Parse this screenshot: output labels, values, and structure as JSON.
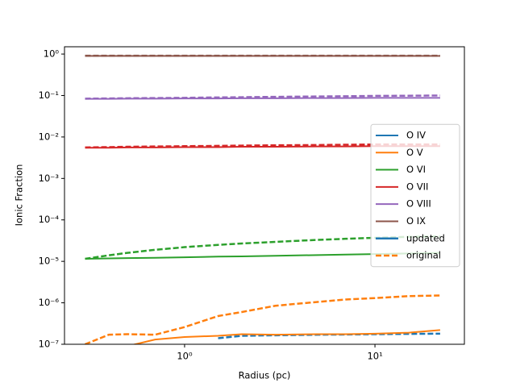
{
  "chart_data": {
    "type": "line",
    "x_label": "Radius (pc)",
    "y_label": "Ionic Fraction",
    "x_log": true,
    "y_log": true,
    "xlim": [
      0.234,
      29.5
    ],
    "ylim": [
      1e-07,
      1.5
    ],
    "xticks": [
      {
        "value": 1,
        "label": "10⁰"
      },
      {
        "value": 10,
        "label": "10¹"
      }
    ],
    "yticks": [
      {
        "value": 1e-07,
        "label": "10⁻⁷"
      },
      {
        "value": 1e-06,
        "label": "10⁻⁶"
      },
      {
        "value": 1e-05,
        "label": "10⁻⁵"
      },
      {
        "value": 0.0001,
        "label": "10⁻⁴"
      },
      {
        "value": 0.001,
        "label": "10⁻³"
      },
      {
        "value": 0.01,
        "label": "10⁻²"
      },
      {
        "value": 0.1,
        "label": "10⁻¹"
      },
      {
        "value": 1,
        "label": "10⁰"
      }
    ],
    "legend_loc": "right",
    "line_styles": [
      {
        "label": "updated",
        "dash": "solid",
        "color": "#1f77b4"
      },
      {
        "label": "original",
        "dash": "dashed",
        "color": "#ff7f0e"
      }
    ],
    "x": [
      0.3,
      0.4,
      0.5,
      0.7,
      1,
      1.5,
      2,
      3,
      5,
      7,
      10,
      15,
      22
    ],
    "series": [
      {
        "name": "O IV",
        "color": "#1f77b4",
        "values": [
          null,
          null,
          null,
          null,
          null,
          null,
          null,
          null,
          null,
          null,
          null,
          null,
          null
        ],
        "original_values": [
          null,
          null,
          null,
          null,
          null,
          1.4e-07,
          1.6e-07,
          1.65e-07,
          1.7e-07,
          1.72e-07,
          1.75e-07,
          1.78e-07,
          1.8e-07
        ]
      },
      {
        "name": "O V",
        "color": "#ff7f0e",
        "values": [
          null,
          null,
          9e-08,
          1.3e-07,
          1.5e-07,
          1.6e-07,
          1.75e-07,
          1.7e-07,
          1.75e-07,
          1.75e-07,
          1.8e-07,
          1.9e-07,
          2.2e-07
        ],
        "original_values": [
          1e-07,
          1.7e-07,
          1.75e-07,
          1.7e-07,
          2.6e-07,
          4.8e-07,
          6e-07,
          8.5e-07,
          1.05e-06,
          1.2e-06,
          1.3e-06,
          1.45e-06,
          1.5e-06
        ]
      },
      {
        "name": "O VI",
        "color": "#2ca02c",
        "values": [
          1.15e-05,
          1.18e-05,
          1.2e-05,
          1.22e-05,
          1.25e-05,
          1.3e-05,
          1.32e-05,
          1.36e-05,
          1.42e-05,
          1.46e-05,
          1.5e-05,
          1.55e-05,
          1.6e-05
        ],
        "original_values": [
          1.15e-05,
          1.4e-05,
          1.6e-05,
          1.9e-05,
          2.2e-05,
          2.5e-05,
          2.7e-05,
          2.95e-05,
          3.3e-05,
          3.5e-05,
          3.7e-05,
          3.9e-05,
          4e-05
        ]
      },
      {
        "name": "O VII",
        "color": "#d62728",
        "values": [
          0.0055,
          0.0055,
          0.0056,
          0.0056,
          0.0057,
          0.0057,
          0.0058,
          0.0058,
          0.0059,
          0.0059,
          0.006,
          0.006,
          0.006
        ],
        "original_values": [
          0.0056,
          0.0057,
          0.0058,
          0.0059,
          0.006,
          0.0061,
          0.0062,
          0.0063,
          0.0064,
          0.0065,
          0.0066,
          0.0066,
          0.0066
        ]
      },
      {
        "name": "O VIII",
        "color": "#9467bd",
        "values": [
          0.083,
          0.083,
          0.084,
          0.084,
          0.085,
          0.085,
          0.086,
          0.086,
          0.087,
          0.087,
          0.088,
          0.088,
          0.088
        ],
        "original_values": [
          0.084,
          0.085,
          0.086,
          0.087,
          0.088,
          0.09,
          0.091,
          0.093,
          0.095,
          0.096,
          0.098,
          0.099,
          0.1
        ]
      },
      {
        "name": "O IX",
        "color": "#8c564b",
        "values": [
          0.9,
          0.9,
          0.9,
          0.9,
          0.9,
          0.9,
          0.9,
          0.9,
          0.9,
          0.9,
          0.9,
          0.9,
          0.9
        ],
        "original_values": [
          0.91,
          0.91,
          0.91,
          0.91,
          0.91,
          0.91,
          0.91,
          0.91,
          0.91,
          0.91,
          0.91,
          0.91,
          0.91
        ]
      }
    ]
  }
}
